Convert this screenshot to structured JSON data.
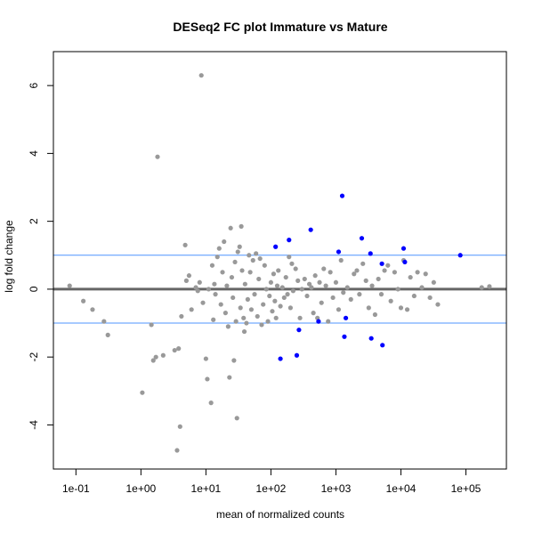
{
  "chart_data": {
    "type": "scatter",
    "title": "DESeq2 FC plot Immature vs Mature",
    "xlabel": "mean of normalized counts",
    "ylabel": "log fold change",
    "x_scale": "log10",
    "xlim": [
      0.045,
      420000
    ],
    "ylim": [
      -5.3,
      7.0
    ],
    "x_ticks": [
      {
        "value": 0.1,
        "label": "1e-01"
      },
      {
        "value": 1,
        "label": "1e+00"
      },
      {
        "value": 10,
        "label": "1e+01"
      },
      {
        "value": 100,
        "label": "1e+02"
      },
      {
        "value": 1000,
        "label": "1e+03"
      },
      {
        "value": 10000,
        "label": "1e+04"
      },
      {
        "value": 100000,
        "label": "1e+05"
      }
    ],
    "y_ticks": [
      {
        "value": -4,
        "label": "-4"
      },
      {
        "value": -2,
        "label": "-2"
      },
      {
        "value": 0,
        "label": "0"
      },
      {
        "value": 2,
        "label": "2"
      },
      {
        "value": 4,
        "label": "4"
      },
      {
        "value": 6,
        "label": "6"
      }
    ],
    "reference_lines": [
      {
        "y": 0,
        "color": "#666666",
        "width": 3
      },
      {
        "y": 1,
        "color": "#4f94ff",
        "width": 1
      },
      {
        "y": -1,
        "color": "#4f94ff",
        "width": 1
      }
    ],
    "colors": {
      "not_significant": "#999999",
      "significant": "#0000ff"
    },
    "grid": false,
    "legend": "none",
    "series": [
      {
        "color": "#999999",
        "points": [
          [
            0.08,
            0.1
          ],
          [
            0.13,
            -0.35
          ],
          [
            0.18,
            -0.6
          ],
          [
            0.27,
            -0.95
          ],
          [
            0.31,
            -1.35
          ],
          [
            1.05,
            -3.05
          ],
          [
            1.45,
            -1.05
          ],
          [
            1.55,
            -2.1
          ],
          [
            1.8,
            3.9
          ],
          [
            1.7,
            -2.0
          ],
          [
            2.2,
            -1.95
          ],
          [
            3.3,
            -1.8
          ],
          [
            3.6,
            -4.75
          ],
          [
            3.8,
            -1.75
          ],
          [
            4.0,
            -4.05
          ],
          [
            4.8,
            1.3
          ],
          [
            4.2,
            -0.8
          ],
          [
            5.0,
            0.25
          ],
          [
            5.5,
            0.4
          ],
          [
            6.0,
            -0.6
          ],
          [
            7.0,
            0.05
          ],
          [
            7.5,
            -0.05
          ],
          [
            8.5,
            6.3
          ],
          [
            8.0,
            0.2
          ],
          [
            9.0,
            -0.4
          ],
          [
            10.0,
            -2.05
          ],
          [
            10.5,
            -2.65
          ],
          [
            11.0,
            0.0
          ],
          [
            12.0,
            -3.35
          ],
          [
            12.5,
            0.7
          ],
          [
            13.0,
            -0.9
          ],
          [
            13.5,
            0.15
          ],
          [
            14.0,
            -0.15
          ],
          [
            15.0,
            0.95
          ],
          [
            16.0,
            1.2
          ],
          [
            17.0,
            -0.45
          ],
          [
            18.0,
            0.5
          ],
          [
            19.0,
            1.4
          ],
          [
            20.0,
            -0.7
          ],
          [
            21.0,
            0.1
          ],
          [
            22.0,
            -1.1
          ],
          [
            23.0,
            -2.6
          ],
          [
            24.0,
            1.8
          ],
          [
            25.0,
            0.35
          ],
          [
            26.0,
            -0.25
          ],
          [
            27.0,
            -2.1
          ],
          [
            28.0,
            0.8
          ],
          [
            29.0,
            -0.95
          ],
          [
            30.0,
            -3.8
          ],
          [
            31.0,
            1.1
          ],
          [
            33.0,
            1.25
          ],
          [
            34.0,
            -0.55
          ],
          [
            35.0,
            1.85
          ],
          [
            36.0,
            0.55
          ],
          [
            38.0,
            -0.85
          ],
          [
            39.0,
            -1.25
          ],
          [
            40.0,
            0.15
          ],
          [
            42.0,
            -1.0
          ],
          [
            44.0,
            -0.3
          ],
          [
            46.0,
            1.0
          ],
          [
            48.0,
            0.5
          ],
          [
            50.0,
            -0.6
          ],
          [
            53.0,
            0.85
          ],
          [
            56.0,
            -0.15
          ],
          [
            59.0,
            1.05
          ],
          [
            62.0,
            -0.8
          ],
          [
            65.0,
            0.3
          ],
          [
            68.0,
            0.9
          ],
          [
            72.0,
            -1.05
          ],
          [
            76.0,
            -0.45
          ],
          [
            80.0,
            0.7
          ],
          [
            85.0,
            0.0
          ],
          [
            90.0,
            -0.95
          ],
          [
            95.0,
            -0.2
          ],
          [
            100.0,
            0.2
          ],
          [
            105.0,
            -0.65
          ],
          [
            110.0,
            0.45
          ],
          [
            115.0,
            -0.35
          ],
          [
            120.0,
            -0.85
          ],
          [
            125.0,
            0.1
          ],
          [
            130.0,
            0.55
          ],
          [
            140.0,
            -0.5
          ],
          [
            150.0,
            0.05
          ],
          [
            160.0,
            -0.25
          ],
          [
            170.0,
            0.35
          ],
          [
            180.0,
            -0.15
          ],
          [
            190.0,
            0.95
          ],
          [
            200.0,
            -0.55
          ],
          [
            210.0,
            0.75
          ],
          [
            220.0,
            -0.05
          ],
          [
            240.0,
            0.6
          ],
          [
            260.0,
            0.25
          ],
          [
            280.0,
            -0.85
          ],
          [
            300.0,
            0.0
          ],
          [
            330.0,
            0.3
          ],
          [
            360.0,
            -0.2
          ],
          [
            390.0,
            0.15
          ],
          [
            420.0,
            0.05
          ],
          [
            450.0,
            -0.7
          ],
          [
            480.0,
            0.4
          ],
          [
            520.0,
            -0.85
          ],
          [
            560.0,
            0.2
          ],
          [
            600.0,
            -0.4
          ],
          [
            650.0,
            0.6
          ],
          [
            700.0,
            0.1
          ],
          [
            760.0,
            -0.95
          ],
          [
            820.0,
            0.5
          ],
          [
            900.0,
            -0.25
          ],
          [
            1000.0,
            0.2
          ],
          [
            1100.0,
            -0.6
          ],
          [
            1200.0,
            0.85
          ],
          [
            1300.0,
            -0.1
          ],
          [
            1500.0,
            0.05
          ],
          [
            1700.0,
            -0.3
          ],
          [
            1900.0,
            0.45
          ],
          [
            2100.0,
            0.55
          ],
          [
            2300.0,
            -0.15
          ],
          [
            2600.0,
            0.75
          ],
          [
            2900.0,
            0.25
          ],
          [
            3200.0,
            -0.55
          ],
          [
            3600.0,
            0.1
          ],
          [
            4000.0,
            -0.75
          ],
          [
            4500.0,
            0.3
          ],
          [
            5000.0,
            -0.15
          ],
          [
            5600.0,
            0.55
          ],
          [
            6300.0,
            0.7
          ],
          [
            7000.0,
            -0.35
          ],
          [
            8000.0,
            0.5
          ],
          [
            9000.0,
            0.0
          ],
          [
            10000.0,
            -0.55
          ],
          [
            11000.0,
            0.85
          ],
          [
            12500.0,
            -0.6
          ],
          [
            14000.0,
            0.35
          ],
          [
            16000.0,
            -0.2
          ],
          [
            18000.0,
            0.5
          ],
          [
            21000.0,
            0.05
          ],
          [
            24000.0,
            0.45
          ],
          [
            28000.0,
            -0.25
          ],
          [
            32000.0,
            0.2
          ],
          [
            37000.0,
            -0.45
          ],
          [
            175000.0,
            0.05
          ],
          [
            230000.0,
            0.08
          ]
        ]
      },
      {
        "color": "#0000ff",
        "points": [
          [
            118.0,
            1.25
          ],
          [
            140.0,
            -2.05
          ],
          [
            190.0,
            1.45
          ],
          [
            250.0,
            -1.95
          ],
          [
            270.0,
            -1.2
          ],
          [
            410.0,
            1.75
          ],
          [
            540.0,
            -0.95
          ],
          [
            1100.0,
            1.1
          ],
          [
            1250.0,
            2.75
          ],
          [
            1350.0,
            -1.4
          ],
          [
            1420.0,
            -0.85
          ],
          [
            2500.0,
            1.5
          ],
          [
            3400.0,
            1.05
          ],
          [
            3500.0,
            -1.45
          ],
          [
            5100.0,
            0.75
          ],
          [
            5200.0,
            -1.65
          ],
          [
            11000.0,
            1.2
          ],
          [
            11500.0,
            0.8
          ],
          [
            82000.0,
            1.0
          ]
        ]
      }
    ]
  }
}
